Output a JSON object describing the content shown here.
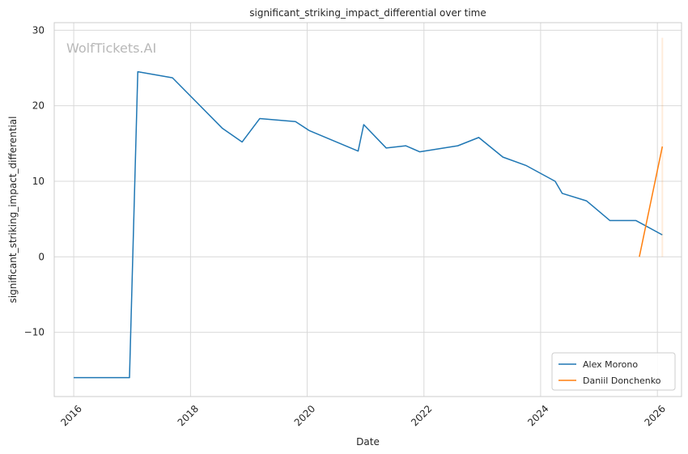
{
  "chart_data": {
    "type": "line",
    "title": "significant_striking_impact_differential over time",
    "xlabel": "Date",
    "ylabel": "significant_striking_impact_differential",
    "watermark": "WolfTickets.AI",
    "xlim": [
      "2015-09-01",
      "2026-06-01"
    ],
    "ylim": [
      -18.5,
      31
    ],
    "x_ticks": [
      "2016-01-01",
      "2018-01-01",
      "2020-01-01",
      "2022-01-01",
      "2024-01-01",
      "2026-01-01"
    ],
    "x_tick_labels": [
      "2016",
      "2018",
      "2020",
      "2022",
      "2024",
      "2026"
    ],
    "y_ticks": [
      -10,
      0,
      10,
      20,
      30
    ],
    "y_tick_labels": [
      "−10",
      "0",
      "10",
      "20",
      "30"
    ],
    "grid": true,
    "legend_position": "bottom-right",
    "colors": {
      "axes_edge": "#cccccc",
      "grid": "#d9d9d9",
      "text": "#262626"
    },
    "series": [
      {
        "name": "Alex Morono",
        "color": "#1f77b4",
        "points": [
          [
            "2016-01-01",
            -16.0
          ],
          [
            "2016-12-15",
            -16.0
          ],
          [
            "2017-02-05",
            24.5
          ],
          [
            "2017-09-10",
            23.7
          ],
          [
            "2018-07-20",
            17.0
          ],
          [
            "2018-11-20",
            15.2
          ],
          [
            "2019-03-10",
            18.3
          ],
          [
            "2019-10-20",
            17.9
          ],
          [
            "2020-01-15",
            16.7
          ],
          [
            "2020-11-15",
            14.0
          ],
          [
            "2020-12-20",
            17.5
          ],
          [
            "2021-05-10",
            14.4
          ],
          [
            "2021-09-10",
            14.7
          ],
          [
            "2021-12-05",
            13.9
          ],
          [
            "2022-08-01",
            14.7
          ],
          [
            "2022-12-10",
            15.8
          ],
          [
            "2023-05-10",
            13.2
          ],
          [
            "2023-10-01",
            12.1
          ],
          [
            "2024-04-01",
            10.0
          ],
          [
            "2024-05-15",
            8.4
          ],
          [
            "2024-10-15",
            7.4
          ],
          [
            "2025-03-10",
            4.8
          ],
          [
            "2025-08-20",
            4.8
          ],
          [
            "2026-02-01",
            2.9
          ]
        ]
      },
      {
        "name": "Daniil Donchenko",
        "color": "#ff7f0e",
        "points": [
          [
            "2025-09-10",
            0.0
          ],
          [
            "2026-02-01",
            14.6
          ]
        ],
        "band": {
          "x": "2026-02-01",
          "low": 0.0,
          "high": 29.0
        }
      }
    ]
  }
}
